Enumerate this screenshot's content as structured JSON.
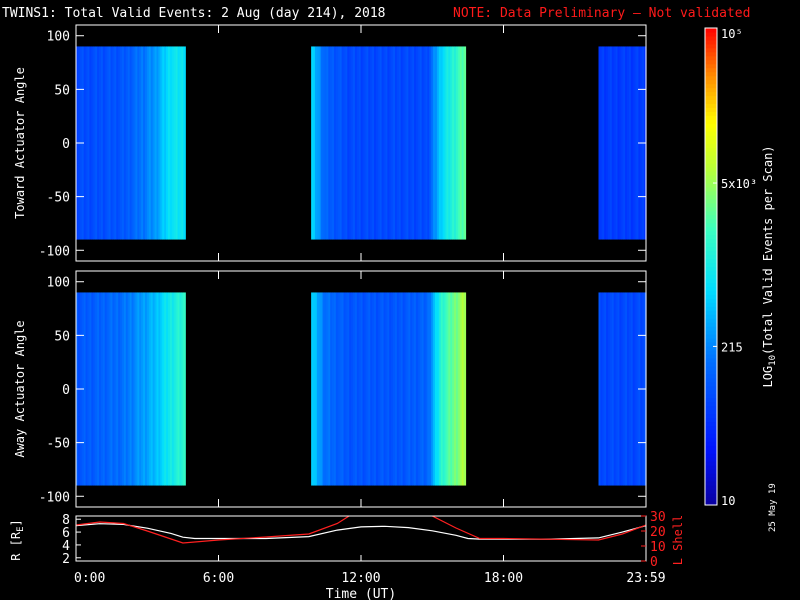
{
  "header": {
    "title": "TWINS1: Total Valid Events:  2 Aug (day 214), 2018",
    "note": "NOTE: Data Preliminary — Not validated",
    "note_color": "#ff1a1a"
  },
  "footer": {
    "date_stamp": "25 May 19"
  },
  "chart_data": [
    {
      "type": "heatmap",
      "panel": "toward",
      "ylabel": "Toward Actuator Angle",
      "ylim": [
        -110,
        110
      ],
      "yticks": [
        100,
        50,
        0,
        -50,
        -100
      ],
      "xlim": [
        0,
        24
      ],
      "data_coverage_hours": [
        [
          0.0,
          4.6
        ],
        [
          9.9,
          16.4
        ],
        [
          22.0,
          24.0
        ]
      ],
      "angle_range": [
        -90,
        90
      ],
      "profile_hours": [
        0.0,
        2.0,
        3.3,
        4.0,
        4.6,
        9.9,
        10.5,
        11.5,
        12.5,
        13.5,
        14.8,
        15.4,
        16.4,
        22.0,
        24.0
      ],
      "profile_log_counts": [
        1.9,
        2.0,
        2.4,
        2.9,
        2.9,
        2.8,
        2.1,
        1.9,
        1.9,
        1.9,
        1.9,
        2.8,
        3.5,
        1.8,
        1.8
      ]
    },
    {
      "type": "heatmap",
      "panel": "away",
      "ylabel": "Away Actuator Angle",
      "ylim": [
        -110,
        110
      ],
      "yticks": [
        100,
        50,
        0,
        -50,
        -100
      ],
      "xlim": [
        0,
        24
      ],
      "data_coverage_hours": [
        [
          0.0,
          4.6
        ],
        [
          9.9,
          16.4
        ],
        [
          22.0,
          24.0
        ]
      ],
      "angle_range": [
        -90,
        90
      ],
      "profile_hours": [
        0.0,
        2.0,
        3.3,
        4.0,
        4.6,
        9.9,
        10.5,
        11.5,
        12.5,
        13.5,
        14.8,
        15.4,
        16.4,
        22.0,
        24.0
      ],
      "profile_log_counts": [
        2.0,
        2.2,
        2.6,
        3.0,
        3.2,
        2.8,
        2.2,
        2.0,
        2.0,
        2.0,
        2.1,
        3.2,
        3.8,
        1.9,
        1.9
      ]
    },
    {
      "type": "line",
      "panel": "orbit",
      "ylabel": "R [R",
      "ylabel_sub": "E",
      "ylabel_tail": "]",
      "y2label": "L Shell",
      "ylim": [
        1.5,
        8.5
      ],
      "yticks": [
        8,
        6,
        4,
        2
      ],
      "y2lim": [
        0,
        30
      ],
      "y2ticks": [
        30,
        20,
        10,
        0
      ],
      "xlim": [
        0,
        24
      ],
      "xticks": [
        "0:00",
        "6:00",
        "12:00",
        "18:00",
        "23:59"
      ],
      "xtick_hours": [
        0,
        6,
        12,
        18,
        24
      ],
      "xlabel": "Time (UT)",
      "series": [
        {
          "color": "#ffffff",
          "axis": "left",
          "x": [
            0,
            1,
            2,
            3,
            4,
            4.5,
            5,
            6,
            8,
            9.8,
            11,
            12,
            13,
            14,
            15,
            16,
            16.5,
            17,
            18,
            20,
            22,
            23,
            24
          ],
          "y": [
            7.0,
            7.3,
            7.2,
            6.6,
            5.8,
            5.2,
            5.0,
            5.0,
            5.0,
            5.3,
            6.3,
            6.8,
            6.9,
            6.7,
            6.2,
            5.5,
            5.0,
            4.9,
            4.9,
            4.9,
            5.1,
            6.0,
            7.0
          ]
        },
        {
          "color": "#ff2020",
          "axis": "right",
          "x": [
            0,
            1,
            2,
            3,
            4.5,
            6,
            8,
            9.8,
            11,
            11.5,
            12,
            14.6,
            15,
            16,
            17,
            18,
            22,
            23,
            24
          ],
          "y": [
            24,
            26,
            25,
            20,
            12,
            14,
            16,
            18,
            25,
            30,
            35,
            35,
            30,
            22,
            15,
            15,
            14,
            18,
            24
          ]
        }
      ]
    },
    {
      "type": "colorbar",
      "label": "LOG",
      "label_sub": "10",
      "label_tail": "(Total Valid  Events per Scan)",
      "tick_labels": [
        "10",
        "215",
        "5x10³",
        "10⁵"
      ],
      "tick_log": [
        1,
        2.33,
        3.7,
        5
      ],
      "range_log": [
        1,
        5
      ]
    }
  ]
}
